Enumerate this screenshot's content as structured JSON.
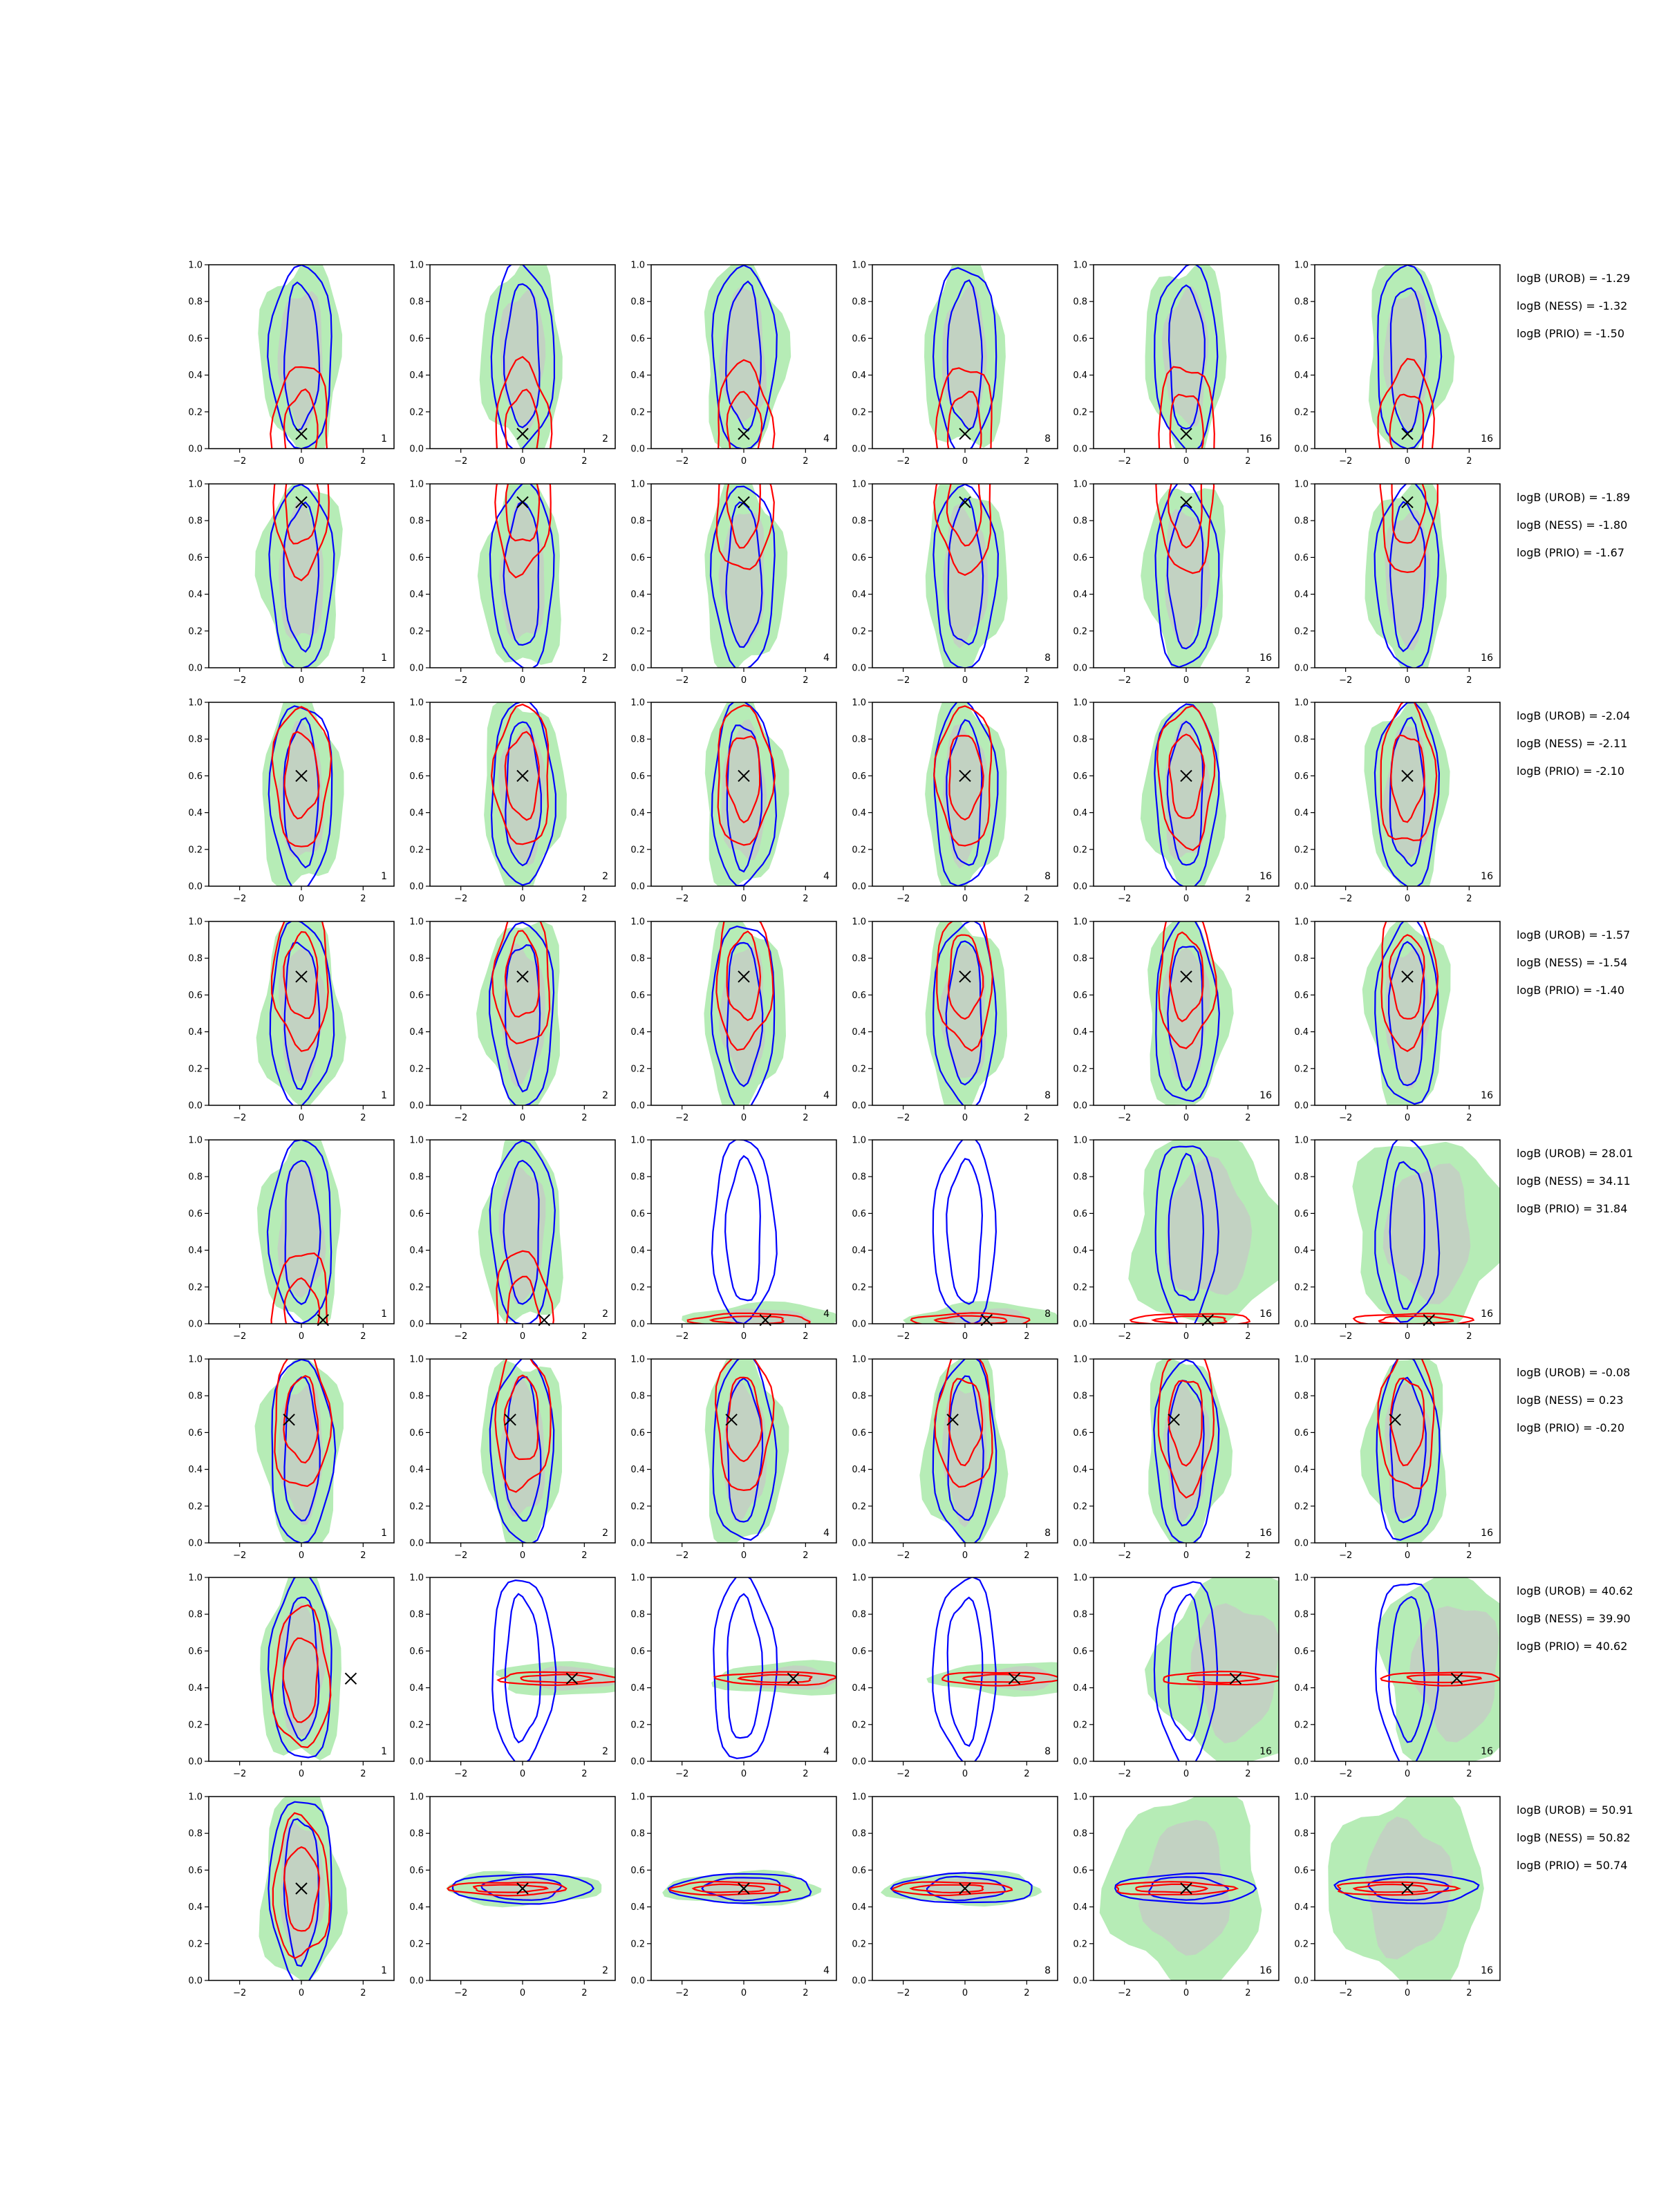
{
  "chart_data": {
    "type": "contour-grid",
    "layout": {
      "rows": 8,
      "cols": 6
    },
    "x_ticks": [
      -2,
      0,
      2
    ],
    "y_ticks": [
      "0.0",
      "0.2",
      "0.4",
      "0.6",
      "0.8",
      "1.0"
    ],
    "xlim": [
      -3,
      3
    ],
    "ylim": [
      0,
      1
    ],
    "column_labels": [
      "1",
      "2",
      "4",
      "8",
      "16",
      "16"
    ],
    "grid": false,
    "colors": {
      "blue_contour": "#0000ff",
      "red_contour": "#ff0000",
      "green_fill": "#b6ecb6",
      "gray_fill": "#c8c8c8",
      "true_marker": "#000000"
    },
    "rows": [
      {
        "true_point": {
          "x": 0.0,
          "y": 0.08
        },
        "logB": [
          "logB (UROB) = -1.29",
          "logB (NESS) = -1.32",
          "logB (PRIO) = -1.50"
        ]
      },
      {
        "true_point": {
          "x": 0.0,
          "y": 0.9
        },
        "logB": [
          "logB (UROB) = -1.89",
          "logB (NESS) = -1.80",
          "logB (PRIO) = -1.67"
        ]
      },
      {
        "true_point": {
          "x": 0.0,
          "y": 0.6
        },
        "logB": [
          "logB (UROB) = -2.04",
          "logB (NESS) = -2.11",
          "logB (PRIO) = -2.10"
        ]
      },
      {
        "true_point": {
          "x": 0.0,
          "y": 0.7
        },
        "logB": [
          "logB (UROB) = -1.57",
          "logB (NESS) = -1.54",
          "logB (PRIO) = -1.40"
        ]
      },
      {
        "true_point": {
          "x": 0.7,
          "y": 0.02
        },
        "logB": [
          "logB (UROB) = 28.01",
          "logB (NESS) = 34.11",
          "logB (PRIO) = 31.84"
        ]
      },
      {
        "true_point": {
          "x": -0.4,
          "y": 0.67
        },
        "logB": [
          "logB (UROB) = -0.08",
          "logB (NESS) = 0.23",
          "logB (PRIO) = -0.20"
        ]
      },
      {
        "true_point": {
          "x": 1.6,
          "y": 0.45
        },
        "logB": [
          "logB (UROB) = 40.62",
          "logB (NESS) = 39.90",
          "logB (PRIO) = 40.62"
        ]
      },
      {
        "true_point": {
          "x": 0.0,
          "y": 0.5
        },
        "logB": [
          "logB (UROB) = 50.91",
          "logB (NESS) = 50.82",
          "logB (PRIO) = 50.74"
        ]
      }
    ]
  }
}
